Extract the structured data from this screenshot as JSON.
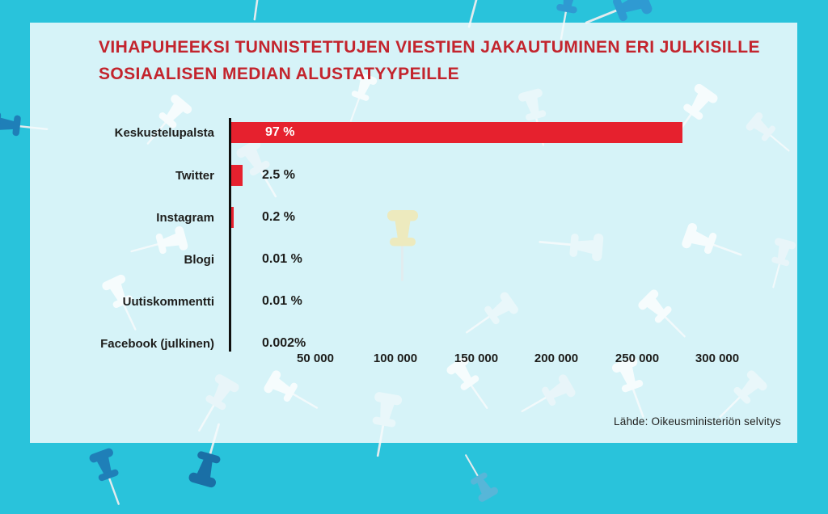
{
  "page": {
    "background_color": "#29c3db",
    "panel_tint": "#f4fbfd",
    "title_color": "#c3242d",
    "text_color": "#1d1d1b",
    "bar_color": "#e6212e",
    "border_pin_color": "#2a93cd",
    "yellow_pin_color": "#f2e9b4"
  },
  "chart_data": {
    "type": "bar",
    "orientation": "horizontal",
    "title": "VIHAPUHEEKSI TUNNISTETTUJEN VIESTIEN JAKAUTUMINEN ERI JULKISILLE\nSOSIAALISEN MEDIAN ALUSTATYYPEILLE",
    "categories": [
      "Keskustelupalsta",
      "Twitter",
      "Instagram",
      "Blogi",
      "Uutiskommentti",
      "Facebook (julkinen)"
    ],
    "values_percent": [
      97,
      2.5,
      0.2,
      0.01,
      0.01,
      0.002
    ],
    "value_labels": [
      "97 %",
      "2.5 %",
      "0.2 %",
      "0.01 %",
      "0.01 %",
      "0.002%"
    ],
    "x_tick_labels": [
      "50 000",
      "100 000",
      "150 000",
      "200 000",
      "250 000",
      "300 000"
    ],
    "x_tick_values": [
      50000,
      100000,
      150000,
      200000,
      250000,
      300000
    ],
    "xlabel": "",
    "ylabel": "",
    "x_axis_range": [
      0,
      300000
    ],
    "grid": false,
    "legend": "none",
    "source": "Lähde: Oikeusministeriön selvitys"
  }
}
